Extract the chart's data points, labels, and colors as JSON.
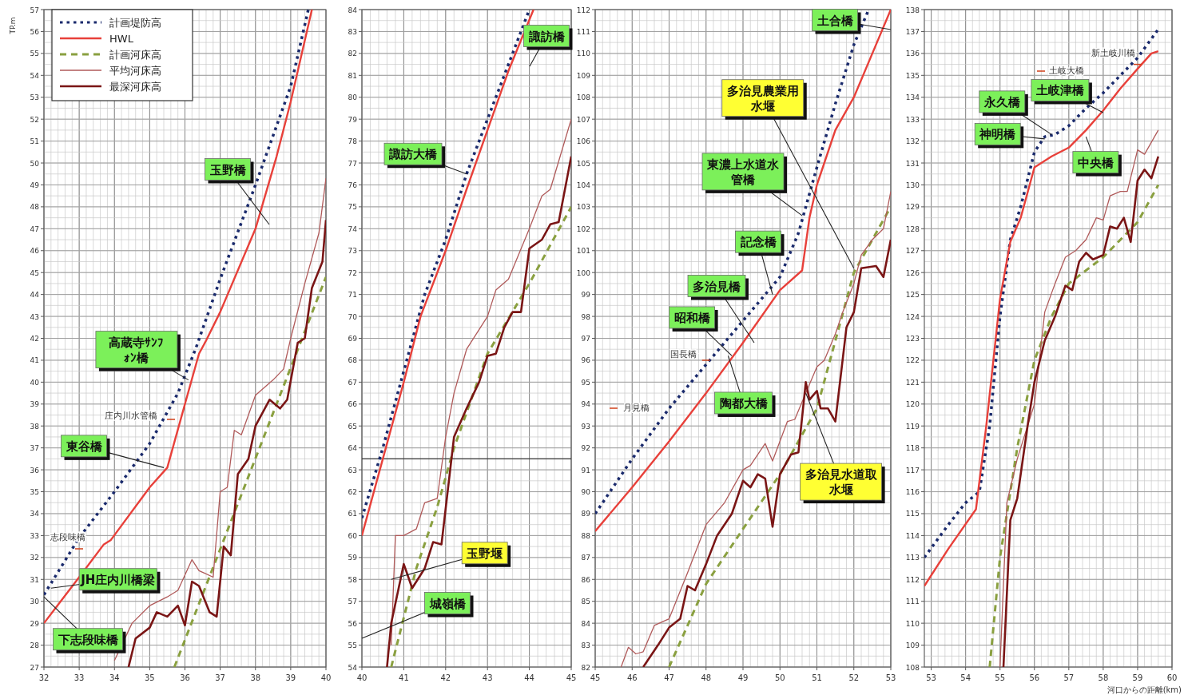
{
  "chart_data": [
    {
      "type": "line",
      "ylabel": "TP.m",
      "legend": "top left",
      "grid": true,
      "marker": "none",
      "xlim": [
        32,
        40
      ],
      "ylim": [
        27,
        57
      ],
      "xticks": [
        32,
        33,
        34,
        35,
        36,
        37,
        38,
        39,
        40
      ],
      "yticks": [
        27,
        28,
        29,
        30,
        31,
        32,
        33,
        34,
        35,
        36,
        37,
        38,
        39,
        40,
        41,
        42,
        43,
        44,
        45,
        46,
        47,
        48,
        49,
        50,
        51,
        52,
        53,
        54,
        55,
        56,
        57
      ],
      "series": [
        {
          "name": "計画堤防高",
          "color": "#1a2a6c",
          "line_style": "dotted",
          "x": [
            32,
            33,
            34,
            35,
            35.8,
            36.3,
            37,
            38,
            39,
            39.5
          ],
          "values": [
            30.3,
            32.9,
            35,
            37.2,
            39.5,
            41.5,
            44.7,
            49,
            53.5,
            57
          ]
        },
        {
          "name": "HWL",
          "color": "#e8403a",
          "line_style": "solid",
          "x": [
            32,
            33,
            33.7,
            33.9,
            35,
            35.5,
            36,
            36.4,
            36.6,
            37,
            38,
            38.6,
            39,
            39.6
          ],
          "values": [
            29,
            31.1,
            32.6,
            32.8,
            35.2,
            36.1,
            39,
            41.3,
            41.9,
            43.2,
            47,
            50.3,
            52.8,
            57
          ]
        },
        {
          "name": "計画河床高",
          "color": "#8aa040",
          "line_style": "dashed",
          "x": [
            35.7,
            40
          ],
          "values": [
            27,
            44.8
          ]
        },
        {
          "name": "平均河床高",
          "color": "#b05a5a",
          "line_style": "solid",
          "x": [
            34,
            34.5,
            35,
            35.5,
            35.8,
            36,
            36.2,
            36.4,
            36.8,
            37,
            37.2,
            37.4,
            37.6,
            38,
            38.5,
            38.8,
            39,
            39.4,
            39.8,
            40
          ],
          "values": [
            27.3,
            29,
            29.8,
            30.2,
            30.5,
            31.2,
            31.9,
            31.4,
            31.1,
            35,
            35.2,
            37.8,
            37.6,
            39.4,
            40.1,
            40.6,
            42,
            44.5,
            46.8,
            49.3
          ]
        },
        {
          "name": "最深河床高",
          "color": "#7a1515",
          "line_style": "solid",
          "x": [
            34.4,
            34.6,
            35,
            35.2,
            35.5,
            35.8,
            36,
            36.2,
            36.4,
            36.7,
            36.9,
            37.1,
            37.3,
            37.5,
            37.8,
            38,
            38.4,
            38.7,
            38.9,
            39.2,
            39.4,
            39.6,
            39.9,
            40
          ],
          "values": [
            27,
            28.3,
            28.8,
            29.5,
            29.3,
            29.8,
            28.9,
            30.9,
            30.7,
            29.5,
            29.3,
            32.5,
            32.1,
            35.8,
            36.5,
            38,
            39.2,
            38.8,
            39.2,
            41.8,
            42,
            44.3,
            45.5,
            47.4
          ]
        }
      ],
      "annotations": [
        "玉野橋",
        "庄内川水管橋",
        "志段味橋",
        {
          "text": "高蔵寺ｻﾝﾌｫﾝ橋",
          "x": 36.1,
          "y": 40.1
        },
        {
          "text": "東谷橋",
          "x": 35.4,
          "y": 36.1
        },
        {
          "text": "JH庄内川橋梁",
          "x": 32.2,
          "y": 30.6
        },
        {
          "text": "下志段味橋",
          "x": 32,
          "y": 30.2
        }
      ]
    },
    {
      "type": "line",
      "legend": false,
      "grid": true,
      "marker": "none",
      "xlim": [
        40,
        45
      ],
      "ylim": [
        54,
        84
      ],
      "xticks": [
        40,
        41,
        42,
        43,
        44,
        45
      ],
      "yticks": [
        54,
        55,
        56,
        57,
        58,
        59,
        60,
        61,
        62,
        63,
        64,
        65,
        66,
        67,
        68,
        69,
        70,
        71,
        72,
        73,
        74,
        75,
        76,
        77,
        78,
        79,
        80,
        81,
        82,
        83,
        84
      ],
      "ref_lines": [
        {
          "axis": "y",
          "value": 63.5,
          "color": "#333333"
        }
      ],
      "series": [
        {
          "color": "#1a2a6c",
          "line_style": "dotted",
          "x": [
            40,
            40.5,
            41,
            41.5,
            42,
            42.5,
            43,
            43.5,
            44
          ],
          "values": [
            60.8,
            64,
            67.5,
            71,
            73.5,
            76.5,
            79,
            81.5,
            84
          ]
        },
        {
          "color": "#e8403a",
          "line_style": "solid",
          "x": [
            40,
            40.5,
            41,
            41.4,
            42,
            42.5,
            43,
            43.5,
            44.1
          ],
          "values": [
            60,
            63.5,
            67,
            70,
            73,
            75.8,
            78.5,
            81.2,
            84
          ]
        },
        {
          "color": "#8aa040",
          "line_style": "dashed",
          "x": [
            40.7,
            41.3,
            41.8,
            42.2,
            43,
            44,
            45
          ],
          "values": [
            54,
            58.5,
            61.3,
            64,
            68.3,
            71.5,
            75
          ]
        },
        {
          "color": "#b05a5a",
          "line_style": "solid",
          "x": [
            40.7,
            40.8,
            41,
            41.3,
            41.5,
            41.8,
            42,
            42.2,
            42.5,
            43,
            43.2,
            43.5,
            44,
            44.3,
            44.5,
            45
          ],
          "values": [
            55,
            60,
            60,
            60.3,
            61.5,
            61.7,
            64.5,
            66.5,
            68.5,
            70,
            71.2,
            71.7,
            74,
            75.5,
            75.8,
            79
          ]
        },
        {
          "color": "#7a1515",
          "line_style": "solid",
          "x": [
            40.6,
            40.7,
            41,
            41.2,
            41.5,
            41.7,
            41.9,
            42.2,
            42.5,
            42.8,
            43,
            43.2,
            43.4,
            43.6,
            43.8,
            44,
            44.3,
            44.5,
            44.7,
            45
          ],
          "values": [
            54,
            56,
            58.7,
            57.6,
            58.5,
            59.7,
            59.6,
            64.5,
            65.8,
            67,
            68.2,
            68.3,
            69.5,
            70.2,
            70.2,
            73.1,
            73.5,
            74.2,
            74.3,
            77.3
          ]
        }
      ],
      "annotations": [
        "諏訪橋",
        {
          "text": "諏訪大橋",
          "x": 42.5,
          "y": 76.5
        },
        {
          "text": "玉野堰",
          "x": 40.7,
          "y": 58
        },
        "城嶺橋"
      ]
    },
    {
      "type": "line",
      "legend": false,
      "grid": true,
      "marker": "none",
      "xlim": [
        45,
        53
      ],
      "ylim": [
        82,
        112
      ],
      "xticks": [
        45,
        46,
        47,
        48,
        49,
        50,
        51,
        52,
        53
      ],
      "yticks": [
        82,
        83,
        84,
        85,
        86,
        87,
        88,
        89,
        90,
        91,
        92,
        93,
        94,
        95,
        96,
        97,
        98,
        99,
        100,
        101,
        102,
        103,
        104,
        105,
        106,
        107,
        108,
        109,
        110,
        111,
        112
      ],
      "series": [
        {
          "color": "#1a2a6c",
          "line_style": "dotted",
          "x": [
            45,
            46,
            47,
            48,
            49,
            50,
            50.5,
            51,
            51.5,
            52,
            52.4
          ],
          "values": [
            89,
            91.5,
            93.8,
            95.8,
            97.8,
            99.8,
            101.8,
            104.8,
            107.7,
            110.4,
            112
          ]
        },
        {
          "color": "#e8403a",
          "line_style": "solid",
          "x": [
            45,
            46,
            47,
            48,
            49,
            50,
            50.6,
            50.8,
            51,
            51.5,
            52,
            52.5,
            53
          ],
          "values": [
            88.2,
            90.2,
            92.3,
            94.5,
            96.8,
            99.2,
            100.1,
            102.5,
            104,
            106.5,
            108,
            110,
            112
          ]
        },
        {
          "color": "#8aa040",
          "line_style": "dashed",
          "x": [
            47,
            48,
            49,
            50,
            51,
            52,
            53
          ],
          "values": [
            82,
            85.8,
            88.3,
            90.8,
            93.8,
            100,
            103
          ]
        },
        {
          "color": "#b05a5a",
          "line_style": "solid",
          "x": [
            45.7,
            45.9,
            46.1,
            46.3,
            46.6,
            47,
            47.5,
            48,
            48.5,
            49,
            49.2,
            49.6,
            49.8,
            50.2,
            50.4,
            50.7,
            51,
            51.2,
            51.5,
            51.7,
            52,
            52.2,
            52.5,
            52.8,
            53
          ],
          "values": [
            82,
            82.9,
            82.6,
            82.7,
            83.9,
            84.2,
            86.3,
            88.5,
            89.5,
            91,
            91.2,
            92.2,
            91.4,
            93.2,
            93.3,
            94.5,
            95.7,
            96,
            97.2,
            98.2,
            99.5,
            100.8,
            101.5,
            102,
            103.7
          ]
        },
        {
          "color": "#7a1515",
          "line_style": "solid",
          "x": [
            46.3,
            46.7,
            47,
            47.3,
            47.5,
            47.7,
            48,
            48.3,
            48.7,
            49,
            49.2,
            49.4,
            49.6,
            49.8,
            50,
            50.3,
            50.5,
            50.7,
            50.8,
            51,
            51.1,
            51.3,
            51.5,
            51.8,
            52,
            52.2,
            52.6,
            52.8,
            53
          ],
          "values": [
            82,
            83,
            83.8,
            84.2,
            85.7,
            85.5,
            86.7,
            88,
            89,
            90.5,
            90.2,
            90.8,
            90.6,
            88.4,
            90.8,
            91.7,
            91.8,
            95,
            94.2,
            94.6,
            93.8,
            93.8,
            93.2,
            97.5,
            98.2,
            100.2,
            100.3,
            99.8,
            101.5
          ]
        }
      ],
      "annotations": [
        "土合橋",
        {
          "text": "多治見農業用水堰",
          "x": 52,
          "y": 100.2
        },
        {
          "text": "東濃上水道水管橋",
          "x": 50.6,
          "y": 102.6
        },
        {
          "text": "記念橋",
          "x": 49.8,
          "y": 99
        },
        "多治見橋",
        {
          "text": "昭和橋",
          "x": 48.7,
          "y": 96.2
        },
        {
          "text": "陶都大橋",
          "x": 48.6,
          "y": 96.2
        },
        {
          "text": "国長橋",
          "x": 48,
          "y": 96
        },
        "月見橋",
        {
          "text": "多治見水道取水堰",
          "x": 50.7,
          "y": 94.5
        }
      ]
    },
    {
      "type": "line",
      "xlabel": "河口からの距離(km)",
      "legend": false,
      "grid": true,
      "marker": "none",
      "xlim": [
        52.8,
        60
      ],
      "ylim": [
        108,
        138
      ],
      "xticks": [
        53,
        54,
        55,
        56,
        57,
        58,
        59,
        60
      ],
      "yticks": [
        108,
        109,
        110,
        111,
        112,
        113,
        114,
        115,
        116,
        117,
        118,
        119,
        120,
        121,
        122,
        123,
        124,
        125,
        126,
        127,
        128,
        129,
        130,
        131,
        132,
        133,
        134,
        135,
        136,
        137,
        138
      ],
      "series": [
        {
          "color": "#1a2a6c",
          "line_style": "dotted",
          "x": [
            52.8,
            53.5,
            54,
            54.4,
            54.7,
            55,
            55.3,
            55.6,
            56,
            56.3,
            56.6,
            57,
            57.5,
            58,
            58.5,
            59,
            59.6
          ],
          "values": [
            113,
            114.5,
            115.5,
            116,
            119,
            124,
            127.5,
            129,
            131.5,
            132.2,
            132.3,
            132.7,
            133.5,
            134.2,
            135,
            135.8,
            137.1
          ]
        },
        {
          "color": "#e8403a",
          "line_style": "solid",
          "x": [
            52.8,
            53.5,
            54.3,
            54.6,
            55,
            55.3,
            55.6,
            56,
            56.5,
            57,
            57.5,
            58,
            58.5,
            59,
            59.4,
            59.6
          ],
          "values": [
            111.7,
            113.4,
            115.2,
            119,
            124.8,
            127.4,
            128.5,
            130.8,
            131.3,
            131.7,
            132.5,
            133.4,
            134.4,
            135.3,
            136,
            136.1
          ]
        },
        {
          "color": "#8aa040",
          "line_style": "dashed",
          "x": [
            54.7,
            55,
            55.5,
            56,
            56.5,
            57,
            58,
            59,
            59.6
          ],
          "values": [
            108,
            113,
            118,
            122,
            124,
            125.5,
            126.7,
            128.3,
            130
          ]
        },
        {
          "color": "#b05a5a",
          "line_style": "solid",
          "x": [
            55,
            55.2,
            55.5,
            56,
            56.3,
            56.6,
            56.9,
            57.2,
            57.5,
            57.8,
            58,
            58.2,
            58.5,
            58.7,
            59,
            59.2,
            59.6
          ],
          "values": [
            108,
            115.5,
            117.5,
            120,
            124.2,
            125.5,
            126.7,
            127,
            127.5,
            128.5,
            128.4,
            129.5,
            129.7,
            129.7,
            131.6,
            131.4,
            132.5
          ]
        },
        {
          "color": "#7a1515",
          "line_style": "solid",
          "x": [
            55.1,
            55.3,
            55.5,
            55.8,
            56,
            56.3,
            56.6,
            56.9,
            57.1,
            57.3,
            57.5,
            57.7,
            58,
            58.2,
            58.4,
            58.6,
            58.8,
            59,
            59.2,
            59.4,
            59.6
          ],
          "values": [
            108,
            114.7,
            115.7,
            119,
            121,
            122.9,
            124,
            125.4,
            125.2,
            126.5,
            126.9,
            126.6,
            126.8,
            128.1,
            128,
            128.5,
            127.4,
            130.2,
            130.7,
            130.3,
            131.3
          ]
        }
      ],
      "annotations": [
        {
          "text": "土岐津橋",
          "x": 58,
          "y": 133.3
        },
        {
          "text": "永久橋",
          "x": 56.5,
          "y": 132.3
        },
        {
          "text": "神明橋",
          "x": 56.3,
          "y": 132.1
        },
        {
          "text": "中央橋",
          "x": 57.5,
          "y": 132.2
        },
        "土岐大橋",
        {
          "text": "新土岐川橋",
          "x": 59,
          "y": 135.5
        }
      ]
    }
  ]
}
